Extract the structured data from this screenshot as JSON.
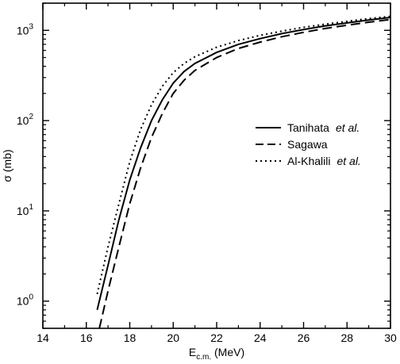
{
  "chart_data": {
    "type": "line",
    "xlabel": {
      "main": "E",
      "sub": "c.m.",
      "unit": " (MeV)"
    },
    "ylabel": "σ (mb)",
    "xlim": [
      14,
      30
    ],
    "ylim": [
      0.5,
      2000
    ],
    "yscale": "log",
    "x_ticks": [
      14,
      16,
      18,
      20,
      22,
      24,
      26,
      28,
      30
    ],
    "x_tick_labels": [
      "14",
      "16",
      "18",
      "20",
      "22",
      "24",
      "26",
      "28",
      "30"
    ],
    "y_ticks": [
      1,
      10,
      100,
      1000
    ],
    "y_tick_labels": [
      {
        "base": "10",
        "exp": "0"
      },
      {
        "base": "10",
        "exp": "1"
      },
      {
        "base": "10",
        "exp": "2"
      },
      {
        "base": "10",
        "exp": "3"
      }
    ],
    "grid": false,
    "legend_position": "center-right",
    "series": [
      {
        "name": "Tanihata",
        "name_suffix": "et al.",
        "style": "solid",
        "x": [
          16.5,
          17.0,
          17.5,
          18.0,
          18.5,
          19.0,
          19.5,
          20.0,
          20.5,
          21.0,
          22.0,
          23.0,
          24.0,
          25.0,
          26.0,
          27.0,
          28.0,
          29.0,
          30.0
        ],
        "y": [
          0.8,
          2.5,
          8,
          22,
          50,
          100,
          170,
          260,
          350,
          430,
          570,
          700,
          810,
          920,
          1020,
          1120,
          1210,
          1300,
          1390
        ]
      },
      {
        "name": "Sagawa",
        "name_suffix": "",
        "style": "dashed",
        "x": [
          16.6,
          17.0,
          17.5,
          18.0,
          18.5,
          19.0,
          19.5,
          20.0,
          20.5,
          21.0,
          22.0,
          23.0,
          24.0,
          25.0,
          26.0,
          27.0,
          28.0,
          29.0,
          30.0
        ],
        "y": [
          0.5,
          1.3,
          4,
          12,
          30,
          65,
          120,
          200,
          280,
          360,
          500,
          630,
          740,
          850,
          950,
          1050,
          1140,
          1230,
          1320
        ]
      },
      {
        "name": "Al-Khalili",
        "name_suffix": "et al.",
        "style": "dotted",
        "x": [
          16.5,
          17.0,
          17.5,
          18.0,
          18.5,
          19.0,
          19.5,
          20.0,
          20.5,
          21.0,
          22.0,
          23.0,
          24.0,
          25.0,
          26.0,
          27.0,
          28.0,
          29.0,
          30.0
        ],
        "y": [
          1.2,
          4,
          12,
          35,
          80,
          150,
          240,
          340,
          430,
          510,
          650,
          770,
          880,
          980,
          1080,
          1170,
          1260,
          1350,
          1430
        ]
      }
    ]
  }
}
